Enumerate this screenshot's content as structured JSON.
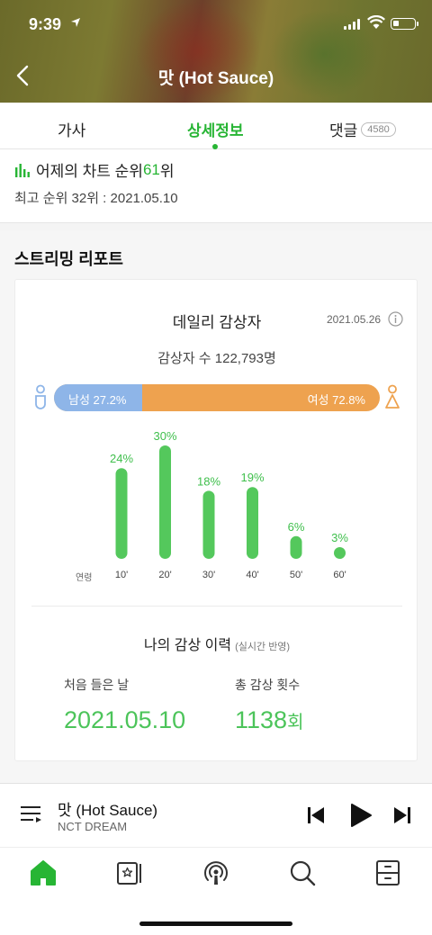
{
  "status_bar": {
    "time": "9:39"
  },
  "header": {
    "title": "맛 (Hot Sauce)"
  },
  "tabs": {
    "lyrics": "가사",
    "detail": "상세정보",
    "comments": "댓글",
    "comment_count": "4580"
  },
  "chart_rank": {
    "prefix": "어제의 차트 순위 ",
    "rank": "61",
    "suffix": "위",
    "best": "최고 순위 32위 : 2021.05.10"
  },
  "report": {
    "title": "스트리밍 리포트",
    "daily_title": "데일리 감상자",
    "date": "2021.05.26",
    "listeners": "감상자 수 122,793명",
    "gender": {
      "male_label": "남성 27.2%",
      "female_label": "여성 72.8%",
      "male_percent": 27.2
    },
    "age_axis_label": "연령",
    "history_title": "나의 감상 이력",
    "history_hint": "(실시간 반영)",
    "first_listen_label": "처음 들은 날",
    "first_listen_date": "2021.05.10",
    "total_count_label": "총 감상 횟수",
    "total_count": "1138",
    "total_count_unit": "회"
  },
  "chart_data": {
    "type": "bar",
    "categories": [
      "10'",
      "20'",
      "30'",
      "40'",
      "50'",
      "60'"
    ],
    "values": [
      24,
      30,
      18,
      19,
      6,
      3
    ],
    "value_labels": [
      "24%",
      "30%",
      "18%",
      "19%",
      "6%",
      "3%"
    ],
    "xlabel": "연령",
    "ylim": [
      0,
      30
    ],
    "bar_color": "#54c85c"
  },
  "player": {
    "title": "맛 (Hot Sauce)",
    "artist": "NCT DREAM"
  },
  "colors": {
    "accent": "#27b534",
    "male": "#8eb5e8",
    "female": "#eea24f",
    "bar": "#54c85c"
  },
  "icons": {
    "nav": [
      "home-icon",
      "album-icon",
      "podcast-icon",
      "search-icon",
      "library-icon"
    ]
  }
}
